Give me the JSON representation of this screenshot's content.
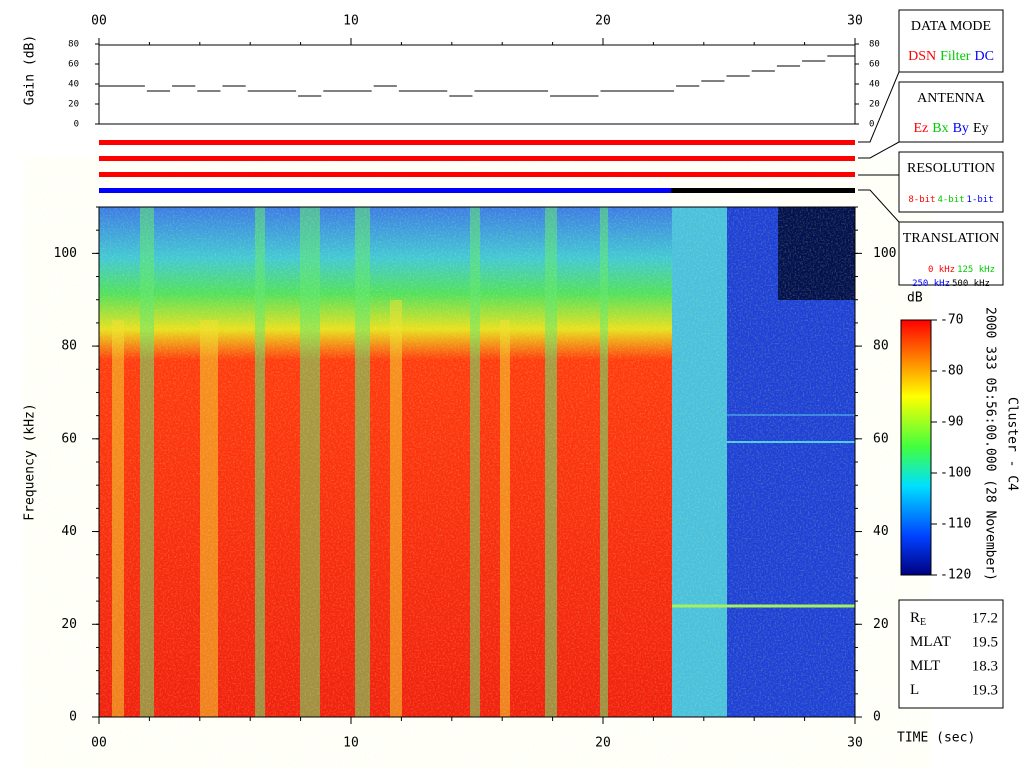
{
  "chart_data": [
    {
      "type": "step",
      "ylabel": "Gain (dB)",
      "x": [
        0,
        1.9,
        2.9,
        3.9,
        4.9,
        5.9,
        7.9,
        8.9,
        10.9,
        11.9,
        13.9,
        14.9,
        17.9,
        19.9,
        22.9,
        23.9,
        24.9,
        25.9,
        26.9,
        27.9,
        28.9
      ],
      "values": [
        38,
        33,
        38,
        33,
        38,
        33,
        28,
        33,
        38,
        33,
        28,
        33,
        28,
        33,
        38,
        43,
        48,
        53,
        58,
        63,
        68
      ],
      "color": "#000000",
      "xlim": [
        0,
        30
      ],
      "xticks": [
        {
          "value": 0,
          "label": "00"
        },
        10,
        20,
        30
      ],
      "ylim": [
        0,
        80
      ],
      "yticks": [
        0,
        20,
        40,
        60,
        80
      ]
    },
    {
      "type": "spectrogram",
      "xlabel": "TIME (sec)",
      "ylabel": "Frequency (kHz)",
      "xlim": [
        0,
        30
      ],
      "xticks": [
        {
          "value": 0,
          "label": "00"
        },
        10,
        20,
        30
      ],
      "ylim": [
        0,
        110
      ],
      "yticks": [
        0,
        20,
        40,
        60,
        80,
        100
      ],
      "colorbar": {
        "label": "dB",
        "clim": [
          -120,
          -70
        ],
        "ticks": [
          -120,
          -110,
          -100,
          -90,
          -80,
          -70
        ]
      },
      "side_text": [
        "2000 333 05:56:00.000 (28 November)",
        "Cluster - C4"
      ]
    }
  ],
  "status_bars": [
    [
      {
        "color": "#ff0000",
        "start": 0,
        "end": 30
      }
    ],
    [
      {
        "color": "#ff0000",
        "start": 0,
        "end": 30
      }
    ],
    [
      {
        "color": "#ff0000",
        "start": 0,
        "end": 30
      }
    ],
    [
      {
        "color": "#0000ff",
        "start": 0,
        "end": 22.7
      },
      {
        "color": "#000000",
        "start": 22.7,
        "end": 30
      }
    ]
  ],
  "panels": [
    {
      "title": "DATA MODE",
      "rows": [
        [
          {
            "text": "DSN",
            "color": "#ff0000"
          },
          {
            "text": "Filter",
            "color": "#00cc00"
          },
          {
            "text": "DC",
            "color": "#0000ff"
          }
        ]
      ]
    },
    {
      "title": "ANTENNA",
      "rows": [
        [
          {
            "text": "Ez",
            "color": "#ff0000"
          },
          {
            "text": "Bx",
            "color": "#00cc00"
          },
          {
            "text": "By",
            "color": "#0000ff"
          },
          {
            "text": "Ey",
            "color": "#000000"
          }
        ]
      ]
    },
    {
      "title": "RESOLUTION",
      "rows": [
        [
          {
            "text": "8-bit",
            "color": "#ff0000"
          },
          {
            "text": "4-bit",
            "color": "#00cc00"
          },
          {
            "text": "1-bit",
            "color": "#0000ff"
          }
        ]
      ]
    },
    {
      "title": "TRANSLATION",
      "rows": [
        [
          {
            "text": "0 kHz",
            "color": "#ff0000"
          },
          {
            "text": "125 kHz",
            "color": "#00cc00"
          }
        ],
        [
          {
            "text": "250 kHz",
            "color": "#0000ff"
          },
          {
            "text": "500 kHz",
            "color": "#000000"
          }
        ]
      ]
    }
  ],
  "info": [
    {
      "label": "R",
      "subscript": "E",
      "value": 17.2
    },
    {
      "label": "MLAT",
      "value": 19.5
    },
    {
      "label": "MLT",
      "value": 18.3
    },
    {
      "label": "L",
      "value": 19.3
    }
  ]
}
